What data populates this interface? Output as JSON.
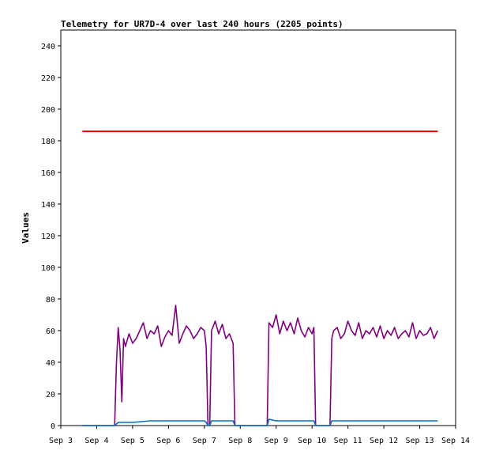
{
  "chart_data": {
    "type": "line",
    "title": "Telemetry for UR7D-4 over last 240 hours (2205 points)",
    "xlabel": "",
    "ylabel": "Values",
    "ylim": [
      0,
      250
    ],
    "yticks": [
      0,
      20,
      40,
      60,
      80,
      100,
      120,
      140,
      160,
      180,
      200,
      220,
      240
    ],
    "xlim": [
      "Sep 3",
      "Sep 14"
    ],
    "xticks": [
      "Sep 3",
      "Sep 4",
      "Sep 5",
      "Sep 6",
      "Sep 7",
      "Sep 8",
      "Sep 9",
      "Sep 10",
      "Sep 11",
      "Sep 12",
      "Sep 13",
      "Sep 14"
    ],
    "grid": false,
    "legend": "none",
    "series": [
      {
        "color": "#ff0000",
        "x": [
          3.6,
          4.0,
          4.5,
          5.0,
          5.5,
          6.0,
          6.5,
          7.0,
          7.5,
          8.0,
          8.5,
          9.0,
          9.5,
          10.0,
          10.5,
          11.0,
          11.5,
          12.0,
          12.5,
          13.0,
          13.5
        ],
        "values": [
          186,
          186,
          186,
          186,
          186,
          186,
          186,
          186,
          186,
          186,
          186,
          186,
          186,
          186,
          186,
          186,
          186,
          186,
          186,
          186,
          186
        ]
      },
      {
        "color": "#800080",
        "x": [
          3.6,
          4.5,
          4.55,
          4.6,
          4.65,
          4.7,
          4.75,
          4.8,
          4.9,
          5.0,
          5.1,
          5.2,
          5.3,
          5.4,
          5.5,
          5.6,
          5.7,
          5.8,
          5.9,
          6.0,
          6.1,
          6.2,
          6.3,
          6.4,
          6.5,
          6.6,
          6.7,
          6.8,
          6.9,
          7.0,
          7.05,
          7.1,
          7.15,
          7.2,
          7.3,
          7.4,
          7.5,
          7.6,
          7.7,
          7.8,
          7.85,
          7.9,
          8.0,
          8.5,
          8.75,
          8.8,
          8.9,
          9.0,
          9.1,
          9.2,
          9.3,
          9.4,
          9.5,
          9.6,
          9.7,
          9.8,
          9.9,
          10.0,
          10.05,
          10.1,
          10.5,
          10.55,
          10.6,
          10.7,
          10.8,
          10.9,
          11.0,
          11.1,
          11.2,
          11.3,
          11.4,
          11.5,
          11.6,
          11.7,
          11.8,
          11.9,
          12.0,
          12.1,
          12.2,
          12.3,
          12.4,
          12.5,
          12.6,
          12.7,
          12.8,
          12.9,
          13.0,
          13.1,
          13.2,
          13.3,
          13.4,
          13.5
        ],
        "values": [
          0,
          0,
          40,
          62,
          48,
          15,
          55,
          50,
          58,
          52,
          55,
          60,
          65,
          55,
          60,
          58,
          63,
          50,
          56,
          60,
          57,
          76,
          52,
          58,
          63,
          60,
          55,
          58,
          62,
          60,
          50,
          0,
          0,
          60,
          66,
          58,
          64,
          55,
          58,
          52,
          0,
          0,
          0,
          0,
          0,
          65,
          62,
          70,
          58,
          66,
          60,
          65,
          58,
          68,
          60,
          56,
          62,
          58,
          62,
          0,
          0,
          55,
          60,
          62,
          55,
          58,
          66,
          60,
          57,
          65,
          55,
          60,
          58,
          62,
          56,
          63,
          55,
          60,
          57,
          62,
          55,
          58,
          60,
          56,
          65,
          55,
          60,
          57,
          58,
          62,
          55,
          60
        ]
      },
      {
        "color": "#0070c0",
        "x": [
          3.6,
          4.5,
          4.6,
          5.0,
          5.5,
          6.0,
          6.5,
          7.0,
          7.05,
          7.1,
          7.15,
          7.2,
          7.5,
          7.8,
          7.85,
          7.9,
          8.5,
          8.75,
          8.8,
          9.0,
          9.5,
          10.0,
          10.05,
          10.1,
          10.5,
          10.55,
          10.6,
          11.0,
          11.5,
          12.0,
          12.5,
          13.0,
          13.5
        ],
        "values": [
          0,
          0,
          2,
          2,
          3,
          3,
          3,
          3,
          2,
          0,
          0,
          3,
          3,
          3,
          0,
          0,
          0,
          0,
          4,
          3,
          3,
          3,
          3,
          0,
          0,
          3,
          3,
          3,
          3,
          3,
          3,
          3,
          3
        ]
      }
    ]
  }
}
